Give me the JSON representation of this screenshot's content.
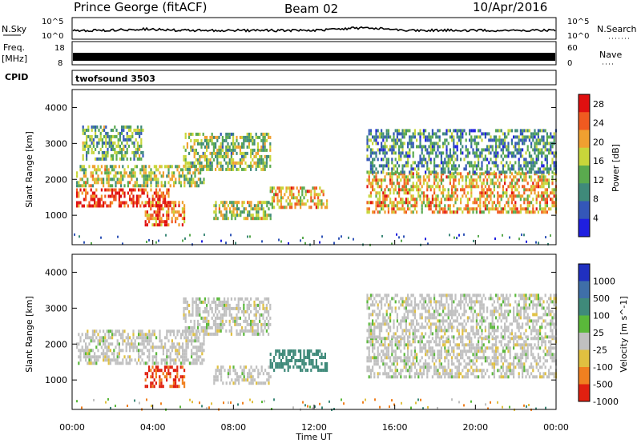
{
  "header": {
    "station": "Prince George (fitACF)",
    "beam": "Beam 02",
    "date": "10/Apr/2016"
  },
  "strips": {
    "noise": {
      "left_label": "N.Sky",
      "left_ticks": [
        "10^5",
        "10^0"
      ],
      "right_ticks": [
        "10^5",
        "10^0"
      ],
      "right_label": "N.Search",
      "right_legend_style": "dotted"
    },
    "freq": {
      "left_label_top": "Freq.",
      "left_label_bottom": "[MHz]",
      "left_ticks": [
        "18",
        "8"
      ],
      "right_ticks": [
        "60",
        "0"
      ],
      "right_label": "Nave",
      "right_legend_style": "dotted"
    },
    "cpid": {
      "label": "CPID",
      "text": "twofsound 3503"
    }
  },
  "chart_data": [
    {
      "type": "heatmap",
      "panel": "power",
      "xlabel": "",
      "ylabel": "Slant Range [km]",
      "xlim": [
        0,
        24
      ],
      "ylim": [
        180,
        4500
      ],
      "yticks": [
        1000,
        2000,
        3000,
        4000
      ],
      "grid": false,
      "colorbar": {
        "label": "Power [dB]",
        "ticks": [
          4,
          8,
          12,
          16,
          20,
          24,
          28
        ],
        "range": [
          0,
          30
        ],
        "colors": [
          "#1f1fe0",
          "#3457b8",
          "#3f8a7a",
          "#5aaa4e",
          "#c8d63a",
          "#f0a030",
          "#f05a20",
          "#e01010"
        ]
      },
      "echo_regions": [
        {
          "t_start": 0.2,
          "t_end": 4.8,
          "r_min": 1250,
          "r_max": 1750,
          "level_db": 26
        },
        {
          "t_start": 0.2,
          "t_end": 6.5,
          "r_min": 1800,
          "r_max": 2400,
          "level_db": 16
        },
        {
          "t_start": 3.6,
          "t_end": 5.6,
          "r_min": 750,
          "r_max": 1400,
          "level_db": 24
        },
        {
          "t_start": 5.5,
          "t_end": 9.8,
          "r_min": 2300,
          "r_max": 3300,
          "level_db": 14
        },
        {
          "t_start": 7.0,
          "t_end": 9.8,
          "r_min": 900,
          "r_max": 1400,
          "level_db": 16
        },
        {
          "t_start": 9.8,
          "t_end": 12.6,
          "r_min": 1200,
          "r_max": 1800,
          "level_db": 20
        },
        {
          "t_start": 14.6,
          "t_end": 24.0,
          "r_min": 1100,
          "r_max": 2200,
          "level_db": 20
        },
        {
          "t_start": 14.6,
          "t_end": 24.0,
          "r_min": 2200,
          "r_max": 3400,
          "level_db": 10
        },
        {
          "t_start": 0.5,
          "t_end": 3.5,
          "r_min": 2600,
          "r_max": 3500,
          "level_db": 12
        }
      ]
    },
    {
      "type": "heatmap",
      "panel": "velocity",
      "xlabel": "Time UT",
      "ylabel": "Slant Range [km]",
      "xlim": [
        0,
        24
      ],
      "ylim": [
        180,
        4500
      ],
      "xticks": [
        "00:00",
        "04:00",
        "08:00",
        "12:00",
        "16:00",
        "20:00",
        "00:00"
      ],
      "yticks": [
        1000,
        2000,
        3000,
        4000
      ],
      "grid": false,
      "colorbar": {
        "label": "Velocity [m s^-1]",
        "ticks": [
          1000,
          500,
          100,
          25,
          -25,
          -100,
          -500,
          -1000
        ],
        "colors": [
          "#2030c0",
          "#3f6fa8",
          "#3f8a7a",
          "#5ab83a",
          "#c0c0c0",
          "#e0c040",
          "#f08020",
          "#e02010"
        ]
      },
      "echo_regions": [
        {
          "t_start": 0.2,
          "t_end": 6.5,
          "r_min": 1500,
          "r_max": 2400,
          "velocity": 0
        },
        {
          "t_start": 3.6,
          "t_end": 5.6,
          "r_min": 800,
          "r_max": 1400,
          "velocity": -300
        },
        {
          "t_start": 5.5,
          "t_end": 9.8,
          "r_min": 2300,
          "r_max": 3300,
          "velocity": 0
        },
        {
          "t_start": 7.0,
          "t_end": 9.8,
          "r_min": 900,
          "r_max": 1400,
          "velocity": 0
        },
        {
          "t_start": 9.8,
          "t_end": 12.6,
          "r_min": 1250,
          "r_max": 1850,
          "velocity": 200
        },
        {
          "t_start": 14.6,
          "t_end": 24.0,
          "r_min": 1100,
          "r_max": 2200,
          "velocity": 0
        },
        {
          "t_start": 14.6,
          "t_end": 24.0,
          "r_min": 2200,
          "r_max": 3400,
          "velocity": 0
        }
      ]
    }
  ]
}
